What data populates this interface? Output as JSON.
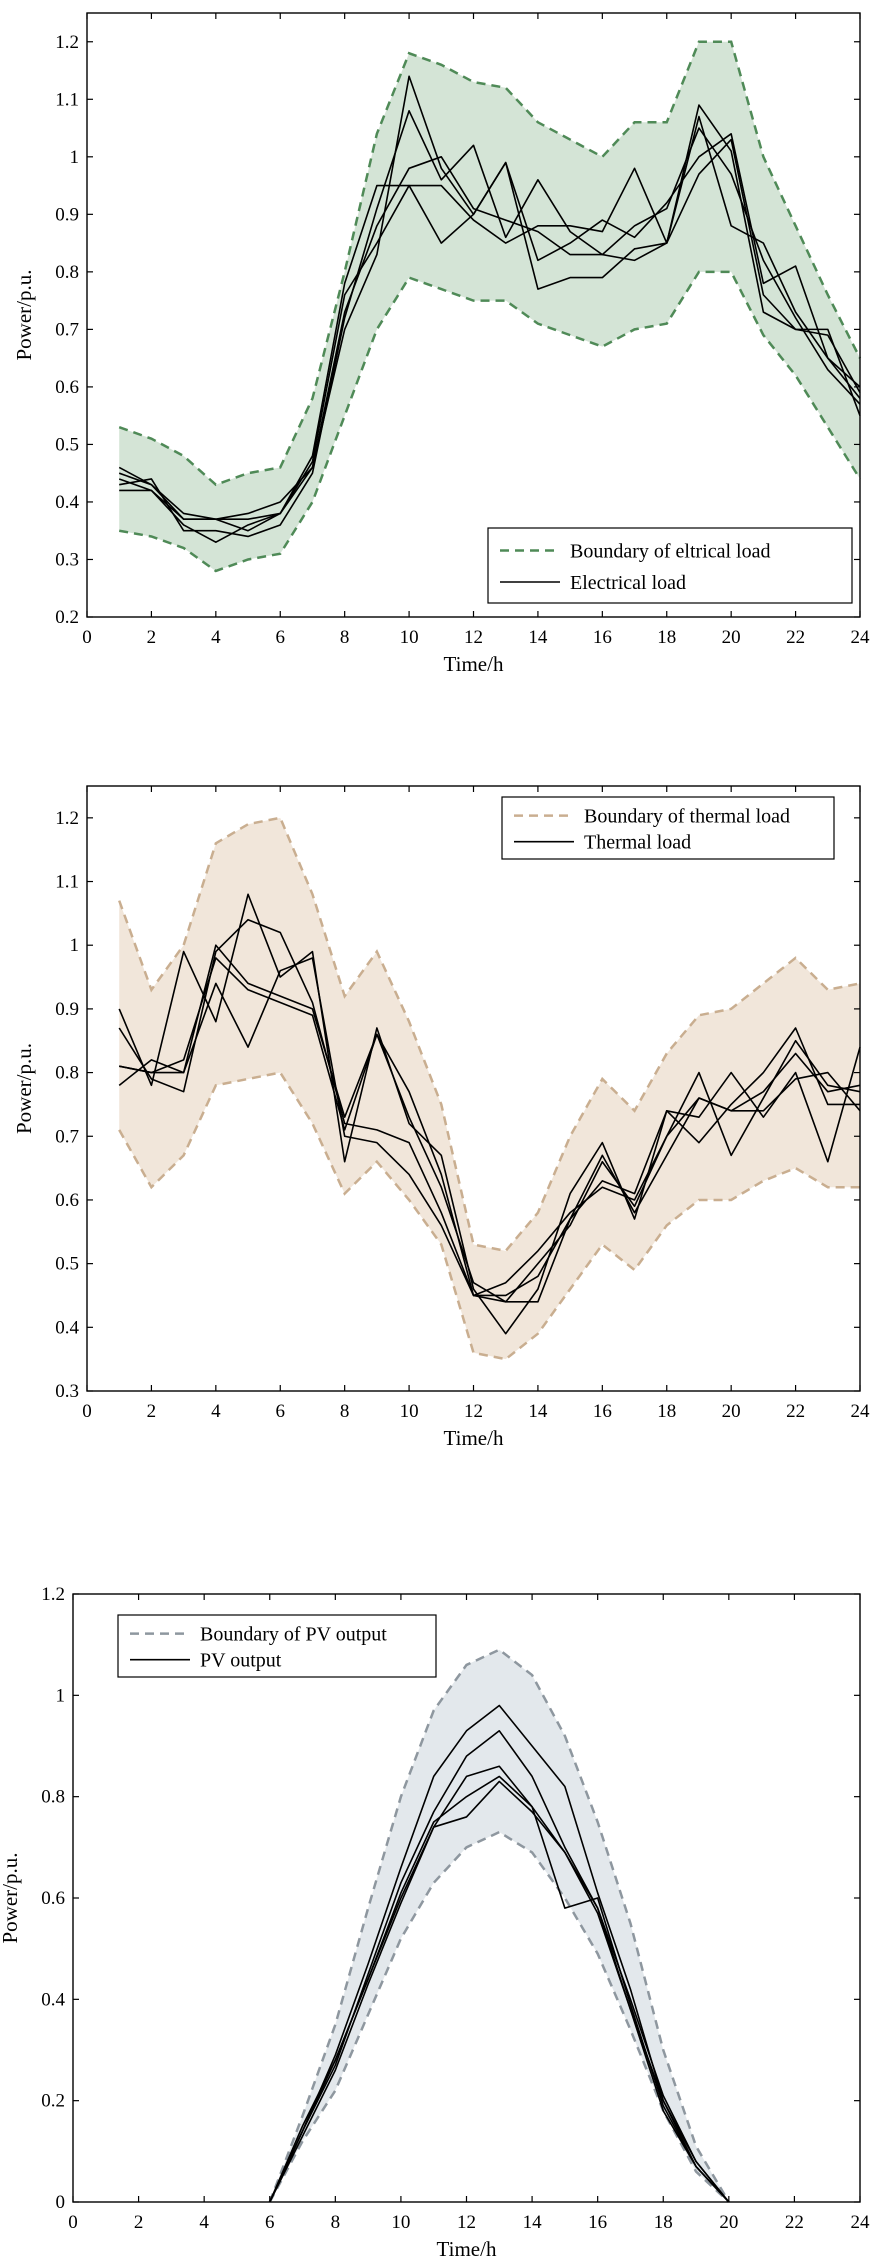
{
  "chart_data": [
    {
      "type": "area",
      "title": "",
      "xlabel": "Time/h",
      "ylabel": "Power/p.u.",
      "xlim": [
        0,
        24
      ],
      "ylim": [
        0.2,
        1.25
      ],
      "xticks": [
        0,
        2,
        4,
        6,
        8,
        10,
        12,
        14,
        16,
        18,
        20,
        22,
        24
      ],
      "yticks": [
        0.2,
        0.3,
        0.4,
        0.5,
        0.6,
        0.7,
        0.8,
        0.9,
        1,
        1.1,
        1.2
      ],
      "ytick_labels": [
        "0.2",
        "0.3",
        "0.4",
        "0.5",
        "0.6",
        "0.7",
        "0.8",
        "0.9",
        "1",
        "1.1",
        "1.2"
      ],
      "legend_position": "bottom-right",
      "fill_color": "#d4e4d6",
      "boundary_color": "#4f8a57",
      "legend": [
        "Boundary of eltrical load",
        "Electrical load"
      ],
      "x": [
        1,
        2,
        3,
        4,
        5,
        6,
        7,
        8,
        9,
        10,
        11,
        12,
        13,
        14,
        15,
        16,
        17,
        18,
        19,
        20,
        21,
        22,
        23,
        24
      ],
      "upper": [
        0.53,
        0.51,
        0.48,
        0.43,
        0.45,
        0.46,
        0.58,
        0.8,
        1.04,
        1.18,
        1.16,
        1.13,
        1.12,
        1.06,
        1.03,
        1.0,
        1.06,
        1.06,
        1.2,
        1.2,
        1.0,
        0.88,
        0.76,
        0.65
      ],
      "lower": [
        0.35,
        0.34,
        0.32,
        0.28,
        0.3,
        0.31,
        0.4,
        0.55,
        0.7,
        0.79,
        0.77,
        0.75,
        0.75,
        0.71,
        0.69,
        0.67,
        0.7,
        0.71,
        0.8,
        0.8,
        0.69,
        0.62,
        0.53,
        0.44
      ],
      "series": [
        {
          "name": "Electrical load",
          "values": [
            0.45,
            0.43,
            0.38,
            0.37,
            0.37,
            0.38,
            0.46,
            0.7,
            0.83,
            1.14,
            0.98,
            0.9,
            0.99,
            0.77,
            0.79,
            0.79,
            0.84,
            0.85,
            1.09,
            1.01,
            0.73,
            0.7,
            0.7,
            0.55
          ]
        },
        {
          "name": "Electrical load",
          "values": [
            0.43,
            0.44,
            0.35,
            0.35,
            0.34,
            0.36,
            0.45,
            0.72,
            0.91,
            1.08,
            0.96,
            1.02,
            0.86,
            0.96,
            0.87,
            0.83,
            0.82,
            0.85,
            1.07,
            0.88,
            0.85,
            0.73,
            0.65,
            0.58
          ]
        },
        {
          "name": "Electrical load",
          "values": [
            0.42,
            0.42,
            0.36,
            0.33,
            0.36,
            0.38,
            0.47,
            0.76,
            0.85,
            0.95,
            0.85,
            0.9,
            0.99,
            0.82,
            0.85,
            0.89,
            0.86,
            0.92,
            1.0,
            1.04,
            0.78,
            0.81,
            0.65,
            0.6
          ]
        },
        {
          "name": "Electrical load",
          "values": [
            0.46,
            0.43,
            0.37,
            0.37,
            0.35,
            0.38,
            0.48,
            0.78,
            0.95,
            0.95,
            0.95,
            0.89,
            0.85,
            0.88,
            0.88,
            0.87,
            0.98,
            0.85,
            0.97,
            1.03,
            0.76,
            0.7,
            0.69,
            0.59
          ]
        },
        {
          "name": "Electrical load",
          "values": [
            0.44,
            0.42,
            0.37,
            0.37,
            0.38,
            0.4,
            0.46,
            0.73,
            0.88,
            0.98,
            1.0,
            0.91,
            0.89,
            0.87,
            0.83,
            0.83,
            0.88,
            0.91,
            1.05,
            0.97,
            0.82,
            0.72,
            0.63,
            0.57
          ]
        }
      ]
    },
    {
      "type": "area",
      "title": "",
      "xlabel": "Time/h",
      "ylabel": "Power/p.u.",
      "xlim": [
        0,
        24
      ],
      "ylim": [
        0.3,
        1.25
      ],
      "xticks": [
        0,
        2,
        4,
        6,
        8,
        10,
        12,
        14,
        16,
        18,
        20,
        22,
        24
      ],
      "yticks": [
        0.3,
        0.4,
        0.5,
        0.6,
        0.7,
        0.8,
        0.9,
        1,
        1.1,
        1.2
      ],
      "ytick_labels": [
        "0.3",
        "0.4",
        "0.5",
        "0.6",
        "0.7",
        "0.8",
        "0.9",
        "1",
        "1.1",
        "1.2"
      ],
      "legend_position": "top-right",
      "fill_color": "#f1e6da",
      "boundary_color": "#c9ae90",
      "legend": [
        "Boundary of thermal load",
        "Thermal load"
      ],
      "x": [
        1,
        2,
        3,
        4,
        5,
        6,
        7,
        8,
        9,
        10,
        11,
        12,
        13,
        14,
        15,
        16,
        17,
        18,
        19,
        20,
        21,
        22,
        23,
        24
      ],
      "upper": [
        1.07,
        0.93,
        1.0,
        1.16,
        1.19,
        1.2,
        1.08,
        0.92,
        0.99,
        0.88,
        0.75,
        0.53,
        0.52,
        0.58,
        0.7,
        0.79,
        0.74,
        0.83,
        0.89,
        0.9,
        0.94,
        0.98,
        0.93,
        0.94
      ],
      "lower": [
        0.71,
        0.62,
        0.67,
        0.78,
        0.79,
        0.8,
        0.72,
        0.61,
        0.66,
        0.6,
        0.53,
        0.36,
        0.35,
        0.39,
        0.46,
        0.53,
        0.49,
        0.56,
        0.6,
        0.6,
        0.63,
        0.65,
        0.62,
        0.62
      ],
      "series": [
        {
          "name": "Thermal load",
          "values": [
            0.9,
            0.78,
            0.99,
            0.88,
            1.08,
            0.95,
            0.99,
            0.66,
            0.87,
            0.72,
            0.67,
            0.46,
            0.39,
            0.46,
            0.61,
            0.69,
            0.57,
            0.74,
            0.73,
            0.8,
            0.73,
            0.8,
            0.66,
            0.84
          ]
        },
        {
          "name": "Thermal load",
          "values": [
            0.81,
            0.8,
            0.8,
            1.0,
            0.94,
            0.92,
            0.9,
            0.73,
            0.86,
            0.77,
            0.64,
            0.45,
            0.45,
            0.48,
            0.57,
            0.63,
            0.61,
            0.74,
            0.69,
            0.75,
            0.8,
            0.87,
            0.75,
            0.75
          ]
        },
        {
          "name": "Thermal load",
          "values": [
            0.87,
            0.79,
            0.77,
            0.99,
            1.04,
            1.02,
            0.91,
            0.72,
            0.71,
            0.69,
            0.58,
            0.45,
            0.47,
            0.52,
            0.58,
            0.62,
            0.6,
            0.7,
            0.8,
            0.67,
            0.76,
            0.85,
            0.78,
            0.77
          ]
        },
        {
          "name": "Thermal load",
          "values": [
            0.78,
            0.82,
            0.8,
            0.94,
            0.84,
            0.96,
            0.98,
            0.7,
            0.69,
            0.64,
            0.56,
            0.45,
            0.44,
            0.44,
            0.57,
            0.67,
            0.58,
            0.67,
            0.76,
            0.74,
            0.74,
            0.79,
            0.8,
            0.74
          ]
        },
        {
          "name": "Thermal load",
          "values": [
            0.81,
            0.8,
            0.82,
            0.98,
            0.93,
            0.91,
            0.89,
            0.71,
            0.86,
            0.73,
            0.62,
            0.47,
            0.44,
            0.5,
            0.56,
            0.66,
            0.59,
            0.7,
            0.76,
            0.74,
            0.77,
            0.83,
            0.77,
            0.78
          ]
        }
      ]
    },
    {
      "type": "area",
      "title": "",
      "xlabel": "Time/h",
      "ylabel": "Power/p.u.",
      "xlim": [
        0,
        24
      ],
      "ylim": [
        0,
        1.2
      ],
      "xticks": [
        0,
        2,
        4,
        6,
        8,
        10,
        12,
        14,
        16,
        18,
        20,
        22,
        24
      ],
      "yticks": [
        0,
        0.2,
        0.4,
        0.6,
        0.8,
        1,
        1.2
      ],
      "ytick_labels": [
        "0",
        "0.2",
        "0.4",
        "0.6",
        "0.8",
        "1",
        "1.2"
      ],
      "legend_position": "top-left",
      "fill_color": "#e3e8ec",
      "boundary_color": "#8e979f",
      "legend": [
        "Boundary of PV output",
        "PV output"
      ],
      "x": [
        6,
        7,
        8,
        9,
        10,
        11,
        12,
        13,
        14,
        15,
        16,
        17,
        18,
        19,
        20
      ],
      "upper": [
        0,
        0.17,
        0.35,
        0.58,
        0.8,
        0.97,
        1.06,
        1.09,
        1.04,
        0.92,
        0.75,
        0.55,
        0.3,
        0.11,
        0
      ],
      "lower": [
        0,
        0.12,
        0.22,
        0.37,
        0.52,
        0.63,
        0.7,
        0.73,
        0.69,
        0.6,
        0.49,
        0.34,
        0.18,
        0.06,
        0
      ],
      "series": [
        {
          "name": "PV output",
          "values": [
            0,
            0.14,
            0.29,
            0.47,
            0.66,
            0.84,
            0.93,
            0.98,
            0.9,
            0.82,
            0.61,
            0.42,
            0.2,
            0.08,
            0
          ]
        },
        {
          "name": "PV output",
          "values": [
            0,
            0.14,
            0.27,
            0.45,
            0.63,
            0.77,
            0.88,
            0.93,
            0.84,
            0.7,
            0.58,
            0.4,
            0.21,
            0.08,
            0
          ]
        },
        {
          "name": "PV output",
          "values": [
            0,
            0.15,
            0.28,
            0.44,
            0.6,
            0.74,
            0.84,
            0.86,
            0.78,
            0.69,
            0.57,
            0.38,
            0.2,
            0.07,
            0
          ]
        },
        {
          "name": "PV output",
          "values": [
            0,
            0.14,
            0.28,
            0.44,
            0.61,
            0.75,
            0.8,
            0.84,
            0.78,
            0.58,
            0.6,
            0.39,
            0.19,
            0.07,
            0
          ]
        },
        {
          "name": "PV output",
          "values": [
            0,
            0.13,
            0.26,
            0.43,
            0.59,
            0.74,
            0.76,
            0.83,
            0.77,
            0.69,
            0.58,
            0.38,
            0.18,
            0.07,
            0
          ]
        }
      ]
    }
  ]
}
